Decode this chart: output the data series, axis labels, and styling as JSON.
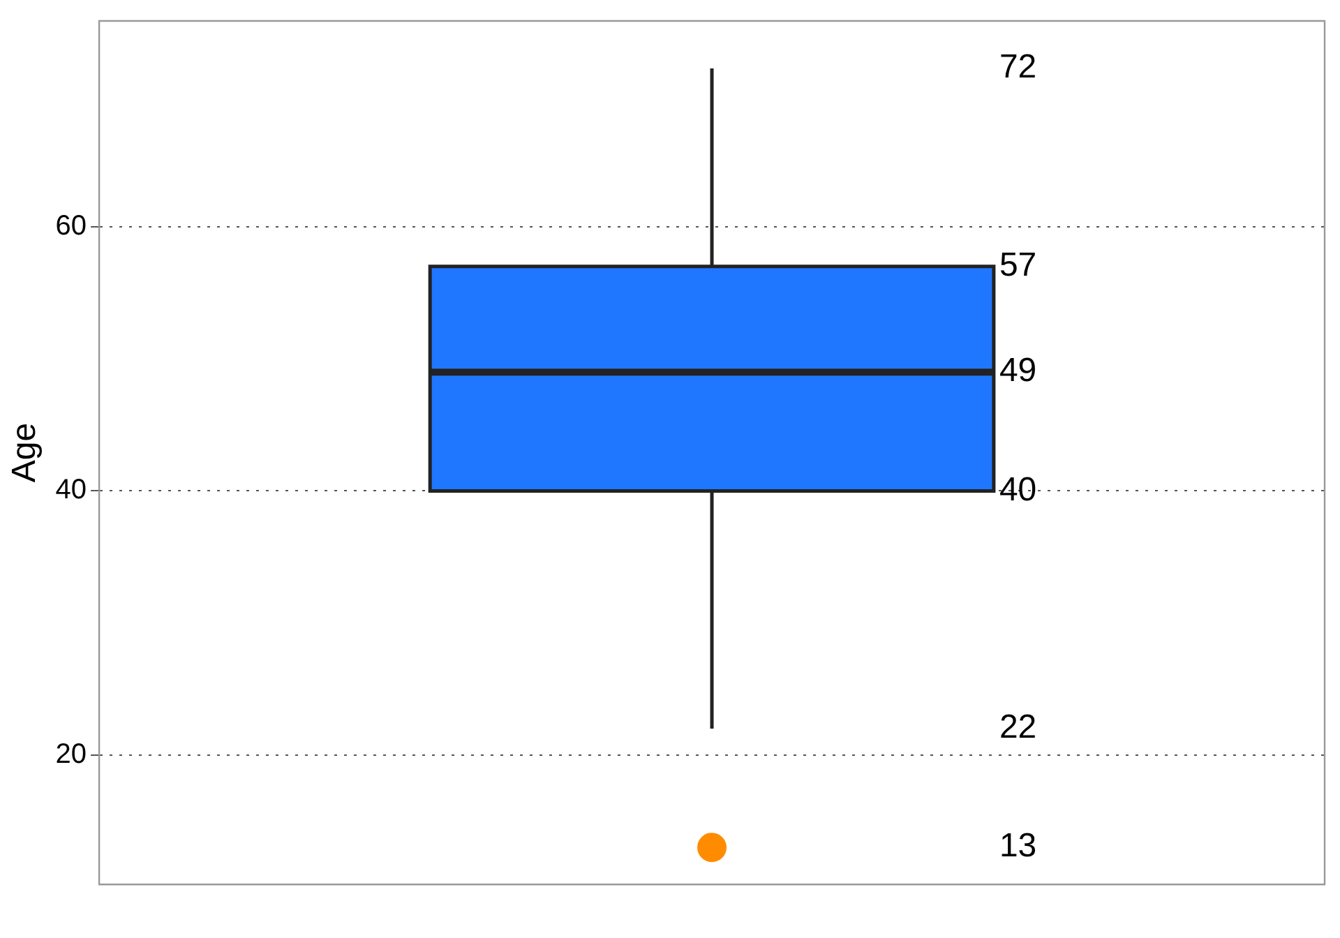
{
  "chart_data": {
    "type": "box",
    "ylabel": "Age",
    "categories": [
      null
    ],
    "series": [
      {
        "color": "#1f77ff",
        "boxes": [
          {
            "low": 22,
            "q1": 40,
            "median": 49,
            "q3": 57,
            "high": 72
          }
        ]
      },
      {
        "type": "scatter",
        "color": "#ff8c00",
        "values": [
          13
        ]
      }
    ],
    "annotations": [
      "72",
      "57",
      "49",
      "40",
      "22",
      "13"
    ],
    "ylim": [
      10.2,
      75.6
    ],
    "yticks": [
      20,
      40,
      60
    ],
    "grid": "y",
    "legend": false,
    "marker": "circle"
  }
}
